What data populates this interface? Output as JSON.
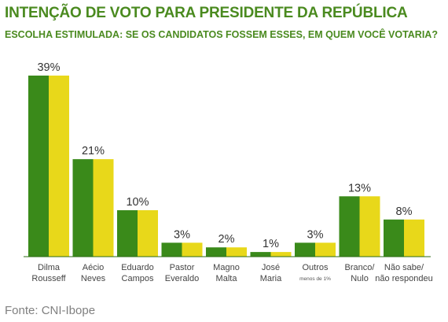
{
  "title": "INTENÇÃO DE VOTO PARA PRESIDENTE DA REPÚBLICA",
  "subtitle": "ESCOLHA ESTIMULADA: SE OS CANDIDATOS FOSSEM ESSES, EM QUEM VOCÊ VOTARIA?",
  "source": "Fonte: CNI-Ibope",
  "colors": {
    "title": "#4a8a1f",
    "bar_left": "#3a8a1a",
    "bar_right": "#e8d81a",
    "axis": "#2e6b14"
  },
  "chart_data": {
    "type": "bar",
    "categories": [
      {
        "lines": [
          "Dilma",
          "Rousseff"
        ],
        "value": 39,
        "label": "39%",
        "note": ""
      },
      {
        "lines": [
          "Aécio",
          "Neves"
        ],
        "value": 21,
        "label": "21%",
        "note": ""
      },
      {
        "lines": [
          "Eduardo",
          "Campos"
        ],
        "value": 10,
        "label": "10%",
        "note": ""
      },
      {
        "lines": [
          "Pastor",
          "Everaldo"
        ],
        "value": 3,
        "label": "3%",
        "note": ""
      },
      {
        "lines": [
          "Magno",
          "Malta"
        ],
        "value": 2,
        "label": "2%",
        "note": ""
      },
      {
        "lines": [
          "José",
          "Maria"
        ],
        "value": 1,
        "label": "1%",
        "note": ""
      },
      {
        "lines": [
          "Outros"
        ],
        "value": 3,
        "label": "3%",
        "note": "menos de 1%"
      },
      {
        "lines": [
          "Branco/",
          "Nulo"
        ],
        "value": 13,
        "label": "13%",
        "note": ""
      },
      {
        "lines": [
          "Não sabe/",
          "não respondeu"
        ],
        "value": 8,
        "label": "8%",
        "note": ""
      }
    ],
    "ylim": [
      0,
      39
    ],
    "grid": false,
    "legend": "none"
  }
}
